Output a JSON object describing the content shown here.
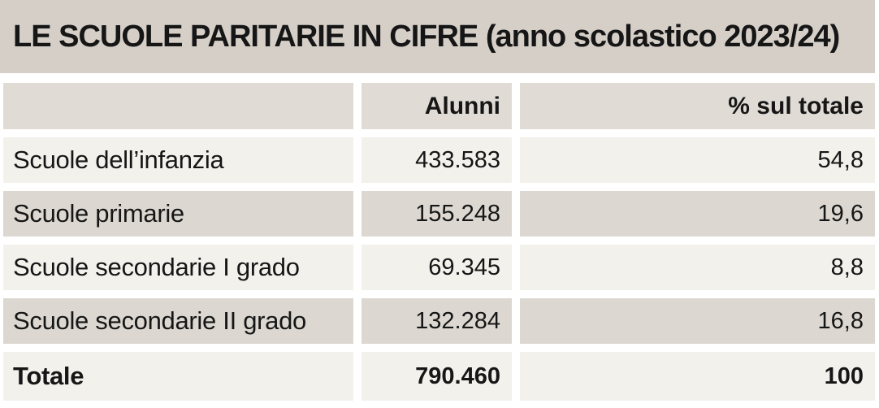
{
  "title": "LE SCUOLE PARITARIE IN CIFRE (anno scolastico 2023/24)",
  "table": {
    "columns": [
      "",
      "Alunni",
      "% sul totale"
    ],
    "rows": [
      {
        "label": "Scuole dell’infanzia",
        "alunni": "433.583",
        "pct": "54,8"
      },
      {
        "label": "Scuole primarie",
        "alunni": "155.248",
        "pct": "19,6"
      },
      {
        "label": "Scuole secondarie I grado",
        "alunni": "69.345",
        "pct": "8,8"
      },
      {
        "label": "Scuole secondarie II grado",
        "alunni": "132.284",
        "pct": "16,8"
      }
    ],
    "total": {
      "label": "Totale",
      "alunni": "790.460",
      "pct": "100"
    }
  },
  "chart_data": {
    "type": "table",
    "title": "LE SCUOLE PARITARIE IN CIFRE (anno scolastico 2023/24)",
    "columns": [
      "",
      "Alunni",
      "% sul totale"
    ],
    "rows": [
      [
        "Scuole dell’infanzia",
        "433.583",
        "54,8"
      ],
      [
        "Scuole primarie",
        "155.248",
        "19,6"
      ],
      [
        "Scuole secondarie I grado",
        "69.345",
        "8,8"
      ],
      [
        "Scuole secondarie II grado",
        "132.284",
        "16,8"
      ],
      [
        "Totale",
        "790.460",
        "100"
      ]
    ]
  },
  "colors": {
    "page_bg": "#ffffff",
    "title_bg": "#d5cfc8",
    "header_bg": "#e0dcd5",
    "row_light": "#f2f1ec",
    "row_dark": "#dcd8d1",
    "text": "#161616"
  }
}
